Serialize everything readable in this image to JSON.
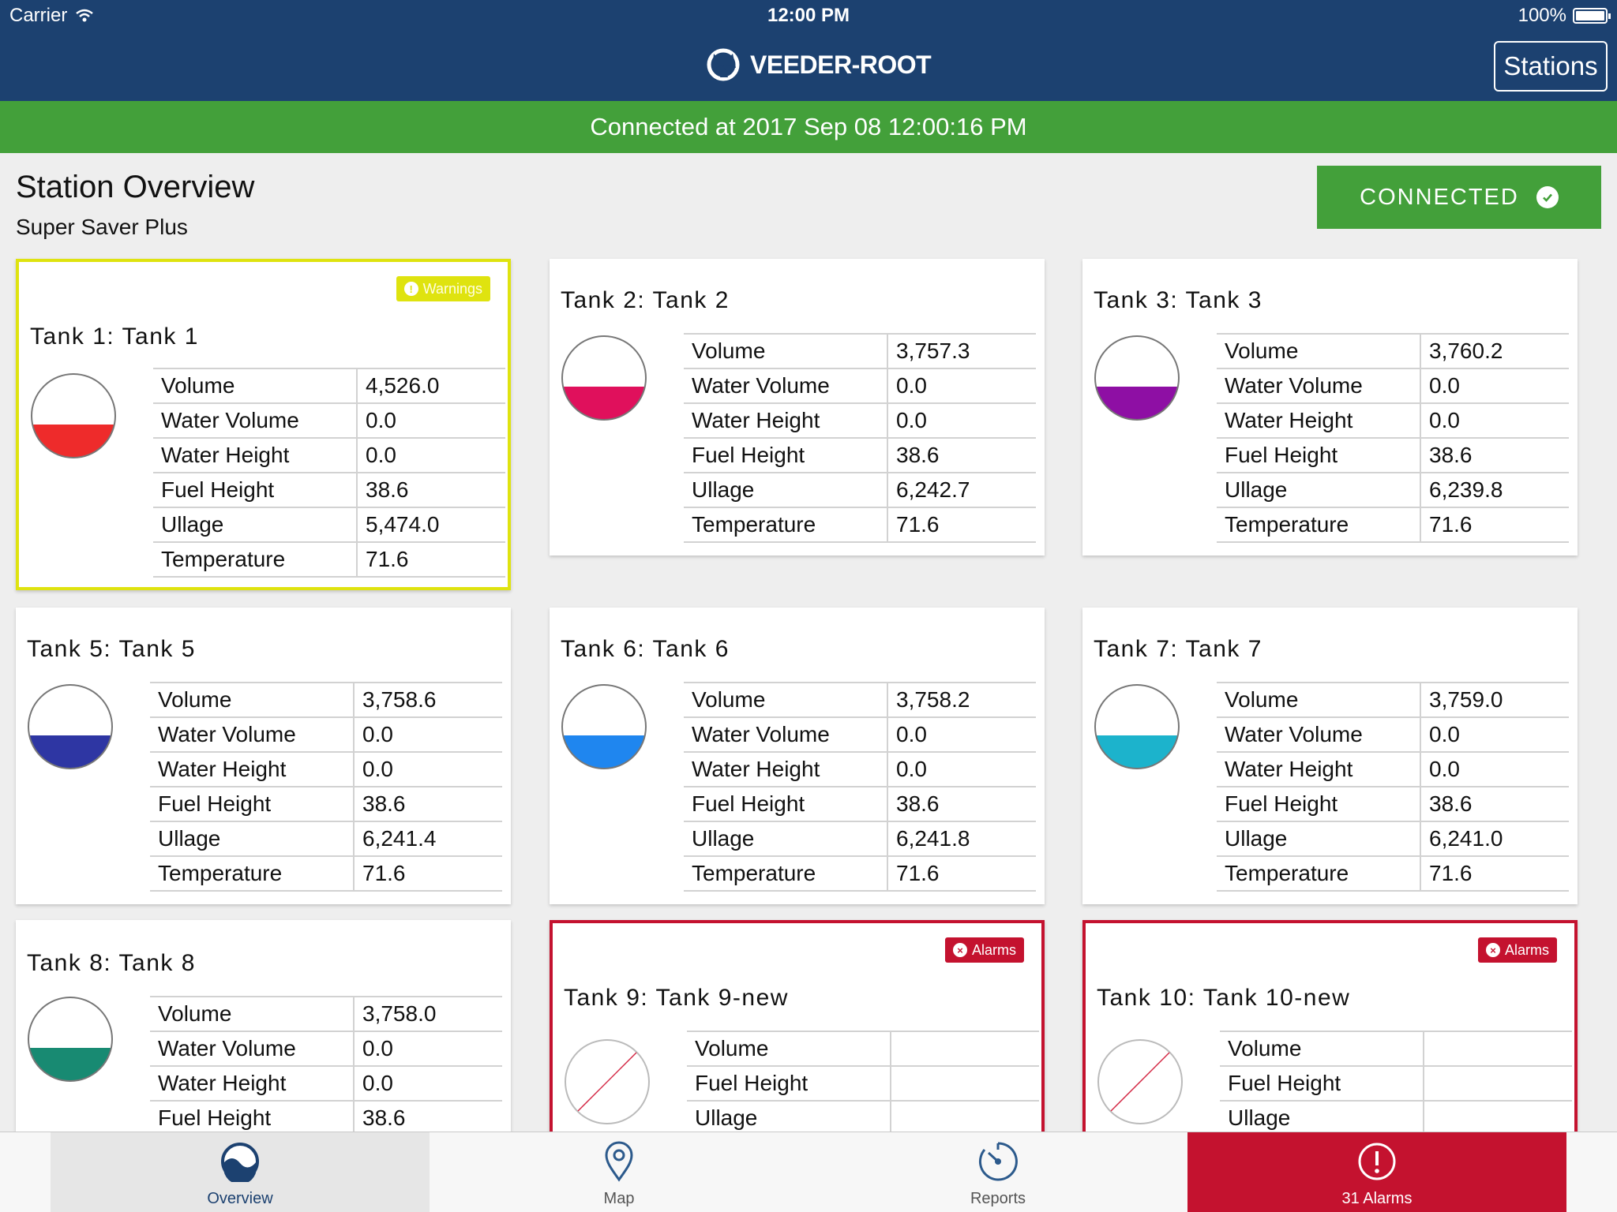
{
  "status_bar": {
    "carrier": "Carrier",
    "time": "12:00 PM",
    "battery": "100%"
  },
  "header": {
    "logo_text": "VEEDER-ROOT",
    "stations_label": "Stations"
  },
  "connection_banner": "Connected at 2017 Sep 08 12:00:16 PM",
  "page": {
    "title": "Station Overview",
    "subtitle": "Super Saver Plus",
    "connected_label": "CONNECTED"
  },
  "colors": {
    "header": "#1c4170",
    "success": "#43a03a",
    "warning": "#dfe30f",
    "alarm": "#c4122f"
  },
  "tanks": [
    {
      "title": "Tank 1: Tank 1",
      "status": "warning",
      "badge": "Warnings",
      "fill_color": "#ee2b2b",
      "rows": [
        {
          "label": "Volume",
          "value": "4,526.0"
        },
        {
          "label": "Water Volume",
          "value": "0.0"
        },
        {
          "label": "Water Height",
          "value": "0.0"
        },
        {
          "label": "Fuel Height",
          "value": "38.6"
        },
        {
          "label": "Ullage",
          "value": "5,474.0"
        },
        {
          "label": "Temperature",
          "value": "71.6"
        }
      ]
    },
    {
      "title": "Tank 2: Tank 2",
      "status": "normal",
      "badge": "",
      "fill_color": "#e0105c",
      "rows": [
        {
          "label": "Volume",
          "value": "3,757.3"
        },
        {
          "label": "Water Volume",
          "value": "0.0"
        },
        {
          "label": "Water Height",
          "value": "0.0"
        },
        {
          "label": "Fuel Height",
          "value": "38.6"
        },
        {
          "label": "Ullage",
          "value": "6,242.7"
        },
        {
          "label": "Temperature",
          "value": "71.6"
        }
      ]
    },
    {
      "title": "Tank 3: Tank 3",
      "status": "normal",
      "badge": "",
      "fill_color": "#8e0fa4",
      "rows": [
        {
          "label": "Volume",
          "value": "3,760.2"
        },
        {
          "label": "Water Volume",
          "value": "0.0"
        },
        {
          "label": "Water Height",
          "value": "0.0"
        },
        {
          "label": "Fuel Height",
          "value": "38.6"
        },
        {
          "label": "Ullage",
          "value": "6,239.8"
        },
        {
          "label": "Temperature",
          "value": "71.6"
        }
      ]
    },
    {
      "title": "Tank 5: Tank 5",
      "status": "normal",
      "badge": "",
      "fill_color": "#2e36a3",
      "rows": [
        {
          "label": "Volume",
          "value": "3,758.6"
        },
        {
          "label": "Water Volume",
          "value": "0.0"
        },
        {
          "label": "Water Height",
          "value": "0.0"
        },
        {
          "label": "Fuel Height",
          "value": "38.6"
        },
        {
          "label": "Ullage",
          "value": "6,241.4"
        },
        {
          "label": "Temperature",
          "value": "71.6"
        }
      ]
    },
    {
      "title": "Tank 6: Tank 6",
      "status": "normal",
      "badge": "",
      "fill_color": "#1f86ef",
      "rows": [
        {
          "label": "Volume",
          "value": "3,758.2"
        },
        {
          "label": "Water Volume",
          "value": "0.0"
        },
        {
          "label": "Water Height",
          "value": "0.0"
        },
        {
          "label": "Fuel Height",
          "value": "38.6"
        },
        {
          "label": "Ullage",
          "value": "6,241.8"
        },
        {
          "label": "Temperature",
          "value": "71.6"
        }
      ]
    },
    {
      "title": "Tank 7: Tank 7",
      "status": "normal",
      "badge": "",
      "fill_color": "#1cb3cc",
      "rows": [
        {
          "label": "Volume",
          "value": "3,759.0"
        },
        {
          "label": "Water Volume",
          "value": "0.0"
        },
        {
          "label": "Water Height",
          "value": "0.0"
        },
        {
          "label": "Fuel Height",
          "value": "38.6"
        },
        {
          "label": "Ullage",
          "value": "6,241.0"
        },
        {
          "label": "Temperature",
          "value": "71.6"
        }
      ]
    },
    {
      "title": "Tank 8: Tank 8",
      "status": "normal",
      "badge": "",
      "fill_color": "#188a72",
      "rows": [
        {
          "label": "Volume",
          "value": "3,758.0"
        },
        {
          "label": "Water Volume",
          "value": "0.0"
        },
        {
          "label": "Water Height",
          "value": "0.0"
        },
        {
          "label": "Fuel Height",
          "value": "38.6"
        }
      ]
    },
    {
      "title": "Tank 9: Tank 9-new",
      "status": "alarm",
      "badge": "Alarms",
      "fill_color": "",
      "rows": [
        {
          "label": "Volume",
          "value": ""
        },
        {
          "label": "Fuel Height",
          "value": ""
        },
        {
          "label": "Ullage",
          "value": ""
        }
      ]
    },
    {
      "title": "Tank 10: Tank 10-new",
      "status": "alarm",
      "badge": "Alarms",
      "fill_color": "",
      "rows": [
        {
          "label": "Volume",
          "value": ""
        },
        {
          "label": "Fuel Height",
          "value": ""
        },
        {
          "label": "Ullage",
          "value": ""
        }
      ]
    }
  ],
  "tabbar": [
    {
      "label": "Overview",
      "icon": "overview-gauge-icon",
      "selected": true
    },
    {
      "label": "Map",
      "icon": "map-pin-icon",
      "selected": false
    },
    {
      "label": "Reports",
      "icon": "reports-dial-icon",
      "selected": false
    },
    {
      "label": "31 Alarms",
      "icon": "alarm-exclamation-icon",
      "selected": false
    }
  ]
}
